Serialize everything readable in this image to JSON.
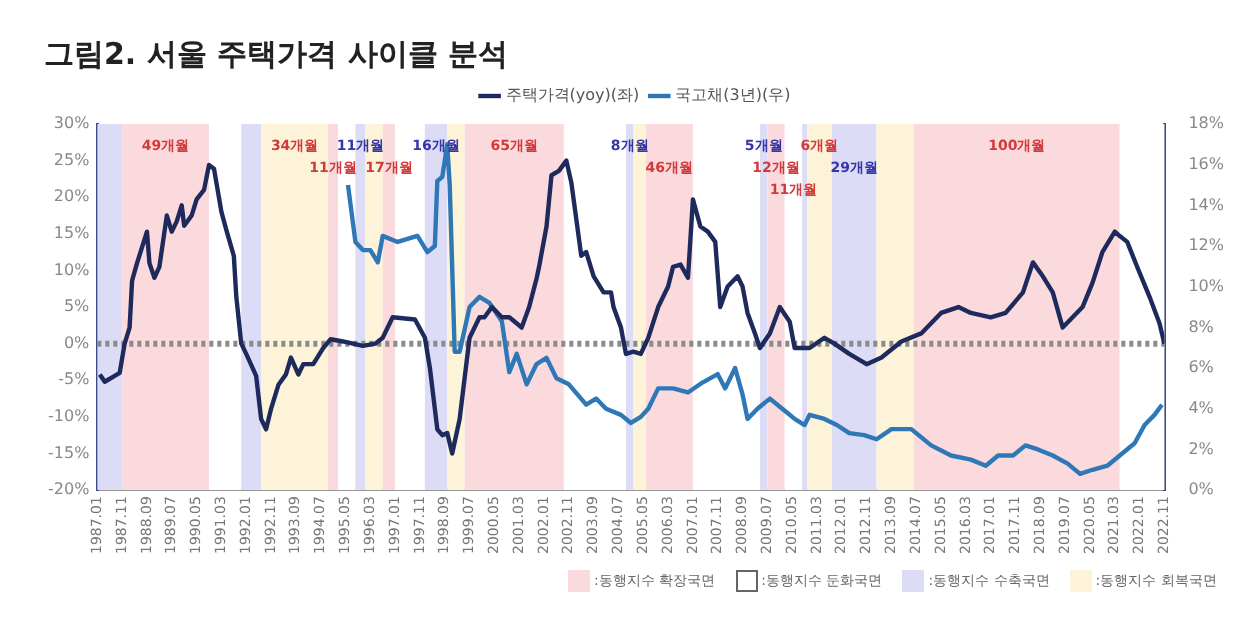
{
  "chart_data": {
    "type": "line",
    "title": "그림2. 서울 주택가격 사이클 분석",
    "legend": "top",
    "grid": false,
    "xlim": [
      "1987-01",
      "2022-11"
    ],
    "xticks": [
      {
        "value": "1987-01",
        "label": "1987.01"
      },
      {
        "value": "1987-11",
        "label": "1987.11"
      },
      {
        "value": "1988-09",
        "label": "1988.09"
      },
      {
        "value": "1989-07",
        "label": "1989.07"
      },
      {
        "value": "1990-05",
        "label": "1990.05"
      },
      {
        "value": "1991-03",
        "label": "1991.03"
      },
      {
        "value": "1992-01",
        "label": "1992.01"
      },
      {
        "value": "1992-11",
        "label": "1992.11"
      },
      {
        "value": "1993-09",
        "label": "1993.09"
      },
      {
        "value": "1994-07",
        "label": "1994.07"
      },
      {
        "value": "1995-05",
        "label": "1995.05"
      },
      {
        "value": "1996-03",
        "label": "1996.03"
      },
      {
        "value": "1997-01",
        "label": "1997.01"
      },
      {
        "value": "1997-11",
        "label": "1997.11"
      },
      {
        "value": "1998-09",
        "label": "1998.09"
      },
      {
        "value": "1999-07",
        "label": "1999.07"
      },
      {
        "value": "2000-05",
        "label": "2000.05"
      },
      {
        "value": "2001-03",
        "label": "2001.03"
      },
      {
        "value": "2002-01",
        "label": "2002.01"
      },
      {
        "value": "2002-11",
        "label": "2002.11"
      },
      {
        "value": "2003-09",
        "label": "2003.09"
      },
      {
        "value": "2004-07",
        "label": "2004.07"
      },
      {
        "value": "2005-05",
        "label": "2005.05"
      },
      {
        "value": "2006-03",
        "label": "2006.03"
      },
      {
        "value": "2007-01",
        "label": "2007.01"
      },
      {
        "value": "2007-11",
        "label": "2007.11"
      },
      {
        "value": "2008-09",
        "label": "2008.09"
      },
      {
        "value": "2009-07",
        "label": "2009.07"
      },
      {
        "value": "2010-05",
        "label": "2010.05"
      },
      {
        "value": "2011-03",
        "label": "2011.03"
      },
      {
        "value": "2012-01",
        "label": "2012.01"
      },
      {
        "value": "2012-11",
        "label": "2012.11"
      },
      {
        "value": "2013-09",
        "label": "2013.09"
      },
      {
        "value": "2014-07",
        "label": "2014.07"
      },
      {
        "value": "2015-05",
        "label": "2015.05"
      },
      {
        "value": "2016-03",
        "label": "2016.03"
      },
      {
        "value": "2017-01",
        "label": "2017.01"
      },
      {
        "value": "2017-11",
        "label": "2017.11"
      },
      {
        "value": "2018-09",
        "label": "2018.09"
      },
      {
        "value": "2019-07",
        "label": "2019.07"
      },
      {
        "value": "2020-05",
        "label": "2020.05"
      },
      {
        "value": "2021-03",
        "label": "2021.03"
      },
      {
        "value": "2022-01",
        "label": "2022.01"
      },
      {
        "value": "2022-11",
        "label": "2022.11"
      }
    ],
    "ylim": [
      -20,
      30
    ],
    "yticks": [
      {
        "value": -20,
        "label": "-20%"
      },
      {
        "value": -15,
        "label": "-15%"
      },
      {
        "value": -10,
        "label": "-10%"
      },
      {
        "value": -5,
        "label": "-5%"
      },
      {
        "value": 0,
        "label": "0%"
      },
      {
        "value": 5,
        "label": "5%"
      },
      {
        "value": 10,
        "label": "10%"
      },
      {
        "value": 15,
        "label": "15%"
      },
      {
        "value": 20,
        "label": "20%"
      },
      {
        "value": 25,
        "label": "25%"
      },
      {
        "value": 30,
        "label": "30%"
      }
    ],
    "y2lim": [
      0,
      18
    ],
    "y2ticks": [
      {
        "value": 0,
        "label": "0%"
      },
      {
        "value": 2,
        "label": "2%"
      },
      {
        "value": 4,
        "label": "4%"
      },
      {
        "value": 6,
        "label": "6%"
      },
      {
        "value": 8,
        "label": "8%"
      },
      {
        "value": 10,
        "label": "10%"
      },
      {
        "value": 12,
        "label": "12%"
      },
      {
        "value": 14,
        "label": "14%"
      },
      {
        "value": 16,
        "label": "16%"
      },
      {
        "value": 18,
        "label": "18%"
      }
    ],
    "series": [
      {
        "name": "주택가격(yoy)(좌)",
        "color": "#1f2a5c",
        "x": [
          "1987-02",
          "1987-04",
          "1987-08",
          "1987-10",
          "1987-12",
          "1988-02",
          "1988-03",
          "1988-05",
          "1988-09",
          "1988-10",
          "1988-12",
          "1989-02",
          "1989-05",
          "1989-07",
          "1989-09",
          "1989-11",
          "1989-12",
          "1990-03",
          "1990-05",
          "1990-08",
          "1990-10",
          "1990-12",
          "1991-03",
          "1991-05",
          "1991-08",
          "1991-09",
          "1991-11",
          "1992-01",
          "1992-05",
          "1992-07",
          "1992-09",
          "1992-11",
          "1993-02",
          "1993-05",
          "1993-07",
          "1993-10",
          "1993-12",
          "1994-04",
          "1994-08",
          "1994-11",
          "1995-04",
          "1995-08",
          "1995-12",
          "1996-05",
          "1996-08",
          "1996-12",
          "1997-09",
          "1998-01",
          "1998-03",
          "1998-06",
          "1998-08",
          "1998-10",
          "1998-12",
          "1999-03",
          "1999-05",
          "1999-07",
          "1999-11",
          "2000-01",
          "2000-04",
          "2000-08",
          "2000-11",
          "2001-04",
          "2001-07",
          "2001-10",
          "2001-11",
          "2002-02",
          "2002-04",
          "2002-07",
          "2002-10",
          "2002-12",
          "2003-04",
          "2003-06",
          "2003-09",
          "2004-01",
          "2004-04",
          "2004-05",
          "2004-08",
          "2004-10",
          "2005-01",
          "2005-04",
          "2005-07",
          "2005-11",
          "2006-03",
          "2006-05",
          "2006-08",
          "2006-11",
          "2007-01",
          "2007-04",
          "2007-07",
          "2007-10",
          "2007-12",
          "2008-03",
          "2008-07",
          "2008-09",
          "2008-11",
          "2009-02",
          "2009-04",
          "2009-08",
          "2009-12",
          "2010-04",
          "2010-06",
          "2010-12",
          "2011-06",
          "2011-10",
          "2012-04",
          "2012-11",
          "2013-05",
          "2014-01",
          "2014-09",
          "2015-05",
          "2015-12",
          "2016-05",
          "2017-01",
          "2017-07",
          "2018-02",
          "2018-06",
          "2018-10",
          "2019-02",
          "2019-06",
          "2019-10",
          "2020-02",
          "2020-06",
          "2020-10",
          "2021-03",
          "2021-05",
          "2021-08",
          "2021-12",
          "2022-05",
          "2022-09",
          "2022-11"
        ],
        "values": [
          -4.2,
          -5.2,
          -4.4,
          -4,
          0,
          2.2,
          8.6,
          11,
          15.3,
          11,
          9,
          10.5,
          17.5,
          15.3,
          16.7,
          18.9,
          16.1,
          17.5,
          19.7,
          21,
          24.4,
          23.9,
          18,
          15.5,
          12,
          6.4,
          0,
          -1.4,
          -4.4,
          -10.3,
          -11.7,
          -8.9,
          -5.6,
          -4.2,
          -1.9,
          -4.2,
          -2.8,
          -2.8,
          -0.6,
          0.6,
          0.3,
          0,
          -0.3,
          0,
          0.8,
          3.6,
          3.3,
          0.8,
          -3.3,
          -11.7,
          -12.5,
          -12.2,
          -15,
          -10.3,
          -4.7,
          0.8,
          3.6,
          3.6,
          5,
          3.6,
          3.6,
          2.2,
          5,
          8.9,
          10.5,
          16,
          23,
          23.6,
          25,
          22,
          12,
          12.5,
          9.2,
          7,
          7,
          5,
          2.2,
          -1.4,
          -1.1,
          -1.4,
          0.8,
          5,
          7.8,
          10.5,
          10.8,
          9,
          19.7,
          16,
          15.3,
          13.9,
          5,
          7.8,
          9.2,
          7.8,
          4.2,
          1.4,
          -0.6,
          1.4,
          5,
          3,
          -0.6,
          -0.6,
          0.8,
          0,
          -1.4,
          -2.8,
          -1.9,
          0.3,
          1.4,
          4.2,
          5,
          4.2,
          3.6,
          4.2,
          7,
          11.1,
          9.2,
          7,
          2.2,
          3.6,
          5,
          8.3,
          12.5,
          15.3,
          14.7,
          13.9,
          10.5,
          6.4,
          2.8,
          0
        ]
      },
      {
        "name": "국고채(3년)(우)",
        "color": "#2f78b8",
        "axis": "y2",
        "x": [
          "1995-06",
          "1995-09",
          "1995-12",
          "1996-03",
          "1996-06",
          "1996-08",
          "1997-02",
          "1997-10",
          "1998-02",
          "1998-05",
          "1998-06",
          "1998-08",
          "1998-10",
          "1998-11",
          "1999-01",
          "1999-03",
          "1999-07",
          "1999-11",
          "2000-03",
          "2000-08",
          "2000-11",
          "2001-02",
          "2001-06",
          "2001-10",
          "2002-02",
          "2002-06",
          "2002-11",
          "2003-06",
          "2003-10",
          "2004-02",
          "2004-08",
          "2004-12",
          "2005-04",
          "2005-07",
          "2005-11",
          "2006-05",
          "2006-11",
          "2007-05",
          "2007-11",
          "2008-02",
          "2008-06",
          "2008-09",
          "2008-11",
          "2009-03",
          "2009-08",
          "2010-01",
          "2010-06",
          "2010-10",
          "2010-12",
          "2011-06",
          "2011-11",
          "2012-04",
          "2012-10",
          "2013-03",
          "2013-09",
          "2014-05",
          "2015-01",
          "2015-09",
          "2016-05",
          "2016-11",
          "2017-04",
          "2017-10",
          "2018-03",
          "2018-08",
          "2019-02",
          "2019-08",
          "2020-01",
          "2020-06",
          "2020-12",
          "2021-05",
          "2021-11",
          "2022-03",
          "2022-07",
          "2022-10"
        ],
        "values": [
          15,
          12.2,
          11.8,
          11.8,
          11.2,
          12.5,
          12.2,
          12.5,
          11.7,
          12,
          15.2,
          15.4,
          17,
          15,
          6.8,
          6.8,
          9,
          9.5,
          9.2,
          8.3,
          5.8,
          6.7,
          5.2,
          6.2,
          6.5,
          5.5,
          5.2,
          4.2,
          4.5,
          4,
          3.7,
          3.3,
          3.6,
          4,
          5,
          5,
          4.8,
          5.3,
          5.7,
          5,
          6,
          4.7,
          3.5,
          4,
          4.5,
          4,
          3.5,
          3.2,
          3.7,
          3.5,
          3.2,
          2.8,
          2.7,
          2.5,
          3,
          3,
          2.2,
          1.7,
          1.5,
          1.2,
          1.7,
          1.7,
          2.2,
          2,
          1.7,
          1.3,
          0.8,
          1,
          1.2,
          1.7,
          2.3,
          3.2,
          3.7,
          4.2
        ]
      }
    ],
    "ref_lines": [
      {
        "axis": "y",
        "value": 0,
        "color": "#8a8a8a",
        "line_style": "dotted"
      }
    ],
    "bands": [
      {
        "axis": "x",
        "from": "1987-11",
        "to": "1990-10",
        "color": "#fadadd",
        "label": "49개월"
      },
      {
        "axis": "x",
        "from": "1990-10",
        "to": "1991-11",
        "color": "#ffffff"
      },
      {
        "axis": "x",
        "from": "1991-11",
        "to": "1992-07",
        "color": "#dcdcf6"
      },
      {
        "axis": "x",
        "from": "1992-07",
        "to": "1994-10",
        "color": "#fdf3d8",
        "label": "34개월"
      },
      {
        "axis": "x",
        "from": "1994-10",
        "to": "1995-02",
        "color": "#fadadd",
        "label": "11개월"
      },
      {
        "axis": "x",
        "from": "1995-02",
        "to": "1995-09",
        "color": "#ffffff"
      },
      {
        "axis": "x",
        "from": "1995-09",
        "to": "1996-01",
        "color": "#dcdcf6",
        "label": "11개월"
      },
      {
        "axis": "x",
        "from": "1996-01",
        "to": "1996-08",
        "color": "#fdf3d8"
      },
      {
        "axis": "x",
        "from": "1996-08",
        "to": "1997-01",
        "color": "#fadadd",
        "label": "17개월"
      },
      {
        "axis": "x",
        "from": "1997-01",
        "to": "1998-01",
        "color": "#ffffff"
      },
      {
        "axis": "x",
        "from": "1998-01",
        "to": "1998-10",
        "color": "#dcdcf6",
        "label": "16개월"
      },
      {
        "axis": "x",
        "from": "1998-10",
        "to": "1999-05",
        "color": "#fdf3d8"
      },
      {
        "axis": "x",
        "from": "1999-05",
        "to": "2002-09",
        "color": "#fadadd",
        "label": "65개월"
      },
      {
        "axis": "x",
        "from": "2002-09",
        "to": "2004-10",
        "color": "#ffffff"
      },
      {
        "axis": "x",
        "from": "2004-10",
        "to": "2005-01",
        "color": "#dcdcf6",
        "label": "8개월"
      },
      {
        "axis": "x",
        "from": "2005-01",
        "to": "2005-06",
        "color": "#fdf3d8"
      },
      {
        "axis": "x",
        "from": "2005-06",
        "to": "2007-01",
        "color": "#fadadd",
        "label": "46개월"
      },
      {
        "axis": "x",
        "from": "2007-01",
        "to": "2009-04",
        "color": "#ffffff"
      },
      {
        "axis": "x",
        "from": "2009-04",
        "to": "2009-07",
        "color": "#dcdcf6",
        "label": "5개월"
      },
      {
        "axis": "x",
        "from": "2009-07",
        "to": "2010-02",
        "color": "#fadadd",
        "label": "12개월"
      },
      {
        "axis": "x",
        "from": "2010-02",
        "to": "2010-09",
        "color": "#ffffff",
        "label": "11개월"
      },
      {
        "axis": "x",
        "from": "2010-09",
        "to": "2010-11",
        "color": "#dcdcf6"
      },
      {
        "axis": "x",
        "from": "2010-11",
        "to": "2011-09",
        "color": "#fdf3d8",
        "label": "6개월"
      },
      {
        "axis": "x",
        "from": "2011-09",
        "to": "2013-03",
        "color": "#dcdcf6",
        "label": "29개월"
      },
      {
        "axis": "x",
        "from": "2013-03",
        "to": "2014-06",
        "color": "#fdf3d8"
      },
      {
        "axis": "x",
        "from": "2014-06",
        "to": "2021-05",
        "color": "#fadadd",
        "label": "100개월"
      },
      {
        "axis": "x",
        "from": "2021-05",
        "to": "2022-11",
        "color": "#ffffff"
      },
      {
        "axis": "x",
        "from": "1987-01",
        "to": "1987-11",
        "color": "#dcdcf6"
      }
    ],
    "annotations": [
      ":동행지수 확장국면",
      ":동행지수 둔화국면",
      ":동행지수 수축국면",
      ":동행지수 회복국면"
    ]
  }
}
